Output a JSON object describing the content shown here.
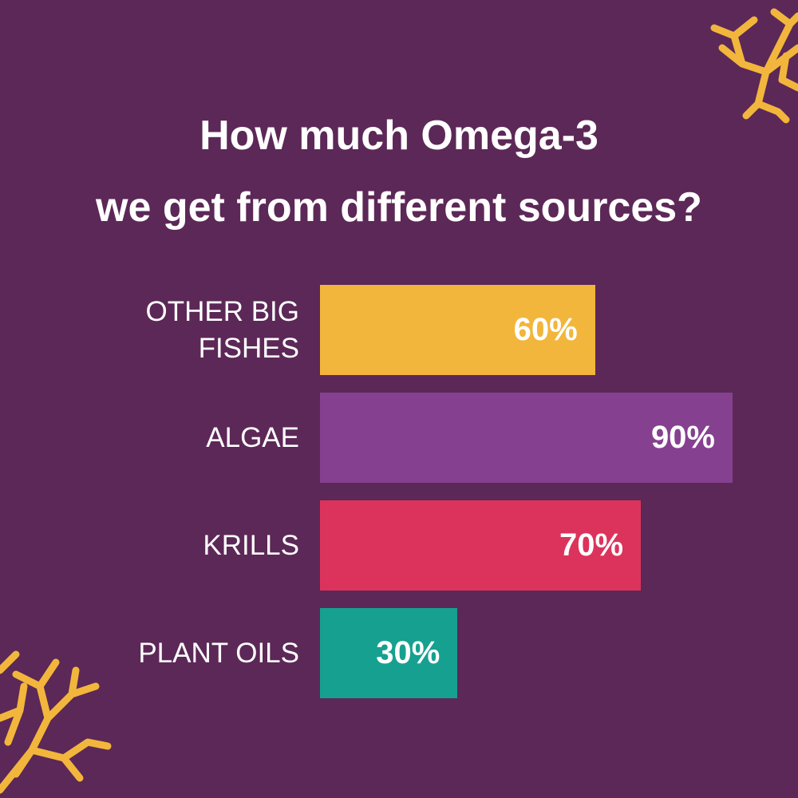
{
  "chart_data": {
    "type": "hbar",
    "title": [
      "How much Omega-3",
      "we get from different sources?"
    ],
    "categories": [
      "OTHER BIG FISHES",
      "ALGAE",
      "KRILLS",
      "PLANT OILS"
    ],
    "values": [
      60,
      90,
      70,
      30
    ],
    "value_labels": [
      "60%",
      "90%",
      "70%",
      "30%"
    ],
    "colors": [
      "#f2b63c",
      "#85418f",
      "#dc335c",
      "#16a090"
    ]
  }
}
